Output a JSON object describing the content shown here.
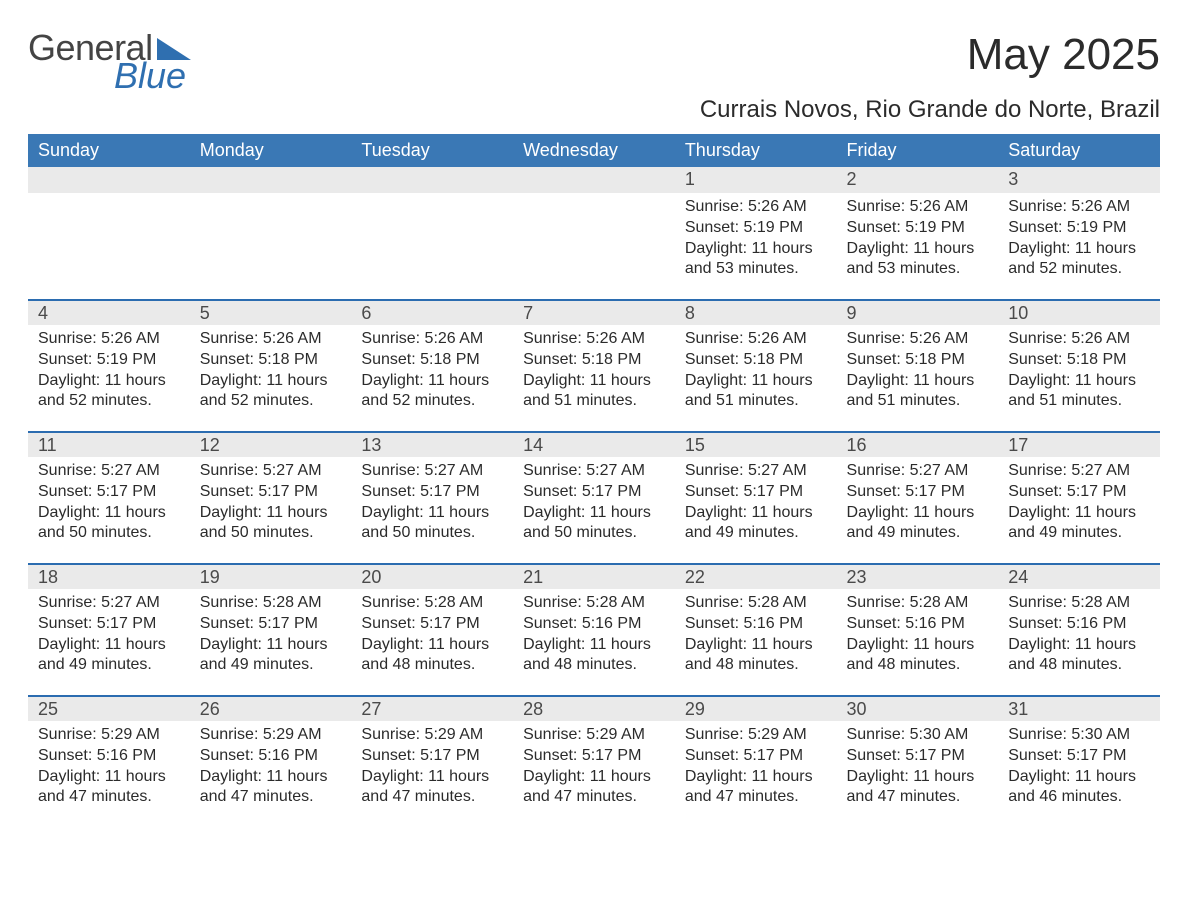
{
  "logo": {
    "word1": "General",
    "word2": "Blue"
  },
  "title": "May 2025",
  "location": "Currais Novos, Rio Grande do Norte, Brazil",
  "colors": {
    "header_blue": "#3a78b5",
    "accent_blue": "#2b6cb0",
    "day_bg": "#eaeaea",
    "logo_blue": "#2f6fb0",
    "text_dark": "#2b2b2b"
  },
  "daysOfWeek": [
    "Sunday",
    "Monday",
    "Tuesday",
    "Wednesday",
    "Thursday",
    "Friday",
    "Saturday"
  ],
  "labels": {
    "sunrise_prefix": "Sunrise: ",
    "sunset_prefix": "Sunset: ",
    "daylight_prefix": "Daylight: "
  },
  "weeks": [
    [
      null,
      null,
      null,
      null,
      {
        "n": "1",
        "sunrise": "5:26 AM",
        "sunset": "5:19 PM",
        "daylight": "11 hours and 53 minutes."
      },
      {
        "n": "2",
        "sunrise": "5:26 AM",
        "sunset": "5:19 PM",
        "daylight": "11 hours and 53 minutes."
      },
      {
        "n": "3",
        "sunrise": "5:26 AM",
        "sunset": "5:19 PM",
        "daylight": "11 hours and 52 minutes."
      }
    ],
    [
      {
        "n": "4",
        "sunrise": "5:26 AM",
        "sunset": "5:19 PM",
        "daylight": "11 hours and 52 minutes."
      },
      {
        "n": "5",
        "sunrise": "5:26 AM",
        "sunset": "5:18 PM",
        "daylight": "11 hours and 52 minutes."
      },
      {
        "n": "6",
        "sunrise": "5:26 AM",
        "sunset": "5:18 PM",
        "daylight": "11 hours and 52 minutes."
      },
      {
        "n": "7",
        "sunrise": "5:26 AM",
        "sunset": "5:18 PM",
        "daylight": "11 hours and 51 minutes."
      },
      {
        "n": "8",
        "sunrise": "5:26 AM",
        "sunset": "5:18 PM",
        "daylight": "11 hours and 51 minutes."
      },
      {
        "n": "9",
        "sunrise": "5:26 AM",
        "sunset": "5:18 PM",
        "daylight": "11 hours and 51 minutes."
      },
      {
        "n": "10",
        "sunrise": "5:26 AM",
        "sunset": "5:18 PM",
        "daylight": "11 hours and 51 minutes."
      }
    ],
    [
      {
        "n": "11",
        "sunrise": "5:27 AM",
        "sunset": "5:17 PM",
        "daylight": "11 hours and 50 minutes."
      },
      {
        "n": "12",
        "sunrise": "5:27 AM",
        "sunset": "5:17 PM",
        "daylight": "11 hours and 50 minutes."
      },
      {
        "n": "13",
        "sunrise": "5:27 AM",
        "sunset": "5:17 PM",
        "daylight": "11 hours and 50 minutes."
      },
      {
        "n": "14",
        "sunrise": "5:27 AM",
        "sunset": "5:17 PM",
        "daylight": "11 hours and 50 minutes."
      },
      {
        "n": "15",
        "sunrise": "5:27 AM",
        "sunset": "5:17 PM",
        "daylight": "11 hours and 49 minutes."
      },
      {
        "n": "16",
        "sunrise": "5:27 AM",
        "sunset": "5:17 PM",
        "daylight": "11 hours and 49 minutes."
      },
      {
        "n": "17",
        "sunrise": "5:27 AM",
        "sunset": "5:17 PM",
        "daylight": "11 hours and 49 minutes."
      }
    ],
    [
      {
        "n": "18",
        "sunrise": "5:27 AM",
        "sunset": "5:17 PM",
        "daylight": "11 hours and 49 minutes."
      },
      {
        "n": "19",
        "sunrise": "5:28 AM",
        "sunset": "5:17 PM",
        "daylight": "11 hours and 49 minutes."
      },
      {
        "n": "20",
        "sunrise": "5:28 AM",
        "sunset": "5:17 PM",
        "daylight": "11 hours and 48 minutes."
      },
      {
        "n": "21",
        "sunrise": "5:28 AM",
        "sunset": "5:16 PM",
        "daylight": "11 hours and 48 minutes."
      },
      {
        "n": "22",
        "sunrise": "5:28 AM",
        "sunset": "5:16 PM",
        "daylight": "11 hours and 48 minutes."
      },
      {
        "n": "23",
        "sunrise": "5:28 AM",
        "sunset": "5:16 PM",
        "daylight": "11 hours and 48 minutes."
      },
      {
        "n": "24",
        "sunrise": "5:28 AM",
        "sunset": "5:16 PM",
        "daylight": "11 hours and 48 minutes."
      }
    ],
    [
      {
        "n": "25",
        "sunrise": "5:29 AM",
        "sunset": "5:16 PM",
        "daylight": "11 hours and 47 minutes."
      },
      {
        "n": "26",
        "sunrise": "5:29 AM",
        "sunset": "5:16 PM",
        "daylight": "11 hours and 47 minutes."
      },
      {
        "n": "27",
        "sunrise": "5:29 AM",
        "sunset": "5:17 PM",
        "daylight": "11 hours and 47 minutes."
      },
      {
        "n": "28",
        "sunrise": "5:29 AM",
        "sunset": "5:17 PM",
        "daylight": "11 hours and 47 minutes."
      },
      {
        "n": "29",
        "sunrise": "5:29 AM",
        "sunset": "5:17 PM",
        "daylight": "11 hours and 47 minutes."
      },
      {
        "n": "30",
        "sunrise": "5:30 AM",
        "sunset": "5:17 PM",
        "daylight": "11 hours and 47 minutes."
      },
      {
        "n": "31",
        "sunrise": "5:30 AM",
        "sunset": "5:17 PM",
        "daylight": "11 hours and 46 minutes."
      }
    ]
  ]
}
